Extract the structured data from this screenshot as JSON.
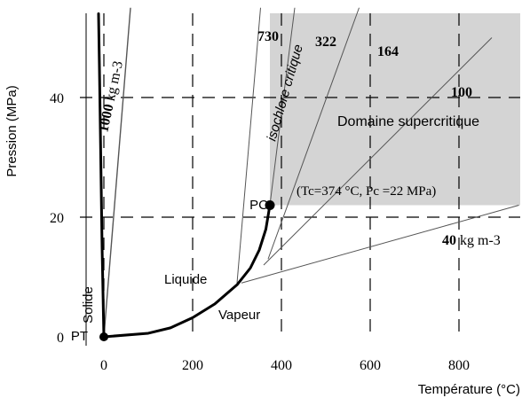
{
  "chart_data": {
    "type": "line",
    "xlabel": "Température (°C)",
    "ylabel": "Pression (MPa)",
    "xlim": [
      -20,
      940
    ],
    "ylim": [
      0,
      54
    ],
    "grid": "dashed",
    "x_ticks": [
      0,
      200,
      400,
      600,
      800
    ],
    "y_ticks": [
      0,
      20,
      40
    ],
    "supercritical_region": {
      "label": "Domaine supercritique",
      "t_min": 374,
      "p_min": 22,
      "color": "#d4d4d4"
    },
    "triple_point": {
      "label": "PT",
      "t": 0.01,
      "p": 0.0006
    },
    "critical_point": {
      "label": "PC",
      "t": 374,
      "p": 22,
      "annotation": "(Tc=374 °C, Pc =22 MPa)"
    },
    "curves": [
      {
        "name": "solid-liquid",
        "style": "thick",
        "points": [
          [
            0.01,
            0
          ],
          [
            -4,
            15
          ],
          [
            -7,
            30
          ],
          [
            -10,
            45
          ],
          [
            -12,
            54
          ]
        ]
      },
      {
        "name": "vaporization",
        "style": "thick",
        "points": [
          [
            0.01,
            0
          ],
          [
            100,
            0.6
          ],
          [
            150,
            1.5
          ],
          [
            200,
            3.2
          ],
          [
            250,
            5.5
          ],
          [
            300,
            8.7
          ],
          [
            330,
            11.5
          ],
          [
            350,
            14.5
          ],
          [
            365,
            18
          ],
          [
            374,
            22
          ]
        ]
      }
    ],
    "isochores": [
      {
        "label": "1000",
        "unit": "kg m-3",
        "points": [
          [
            0.01,
            0
          ],
          [
            60,
            55
          ]
        ]
      },
      {
        "label": "730",
        "points": [
          [
            300,
            9
          ],
          [
            353,
            55
          ]
        ]
      },
      {
        "label": "322",
        "isocritical_label": "isochlore critique",
        "points": [
          [
            374,
            22
          ],
          [
            430,
            55
          ]
        ]
      },
      {
        "label": "164",
        "points": [
          [
            370,
            13
          ],
          [
            575,
            55
          ]
        ]
      },
      {
        "label": "100",
        "points": [
          [
            360,
            12
          ],
          [
            874,
            50
          ]
        ]
      },
      {
        "label": "40",
        "unit": "kg m-3",
        "points": [
          [
            310,
            9
          ],
          [
            935,
            22
          ]
        ]
      }
    ],
    "phase_labels": [
      {
        "text": "Solide",
        "t": -25,
        "p": 4,
        "rotate": -90
      },
      {
        "text": "Liquide",
        "t": 255,
        "p": 9.2,
        "rotate": 0
      },
      {
        "text": "Vapeur",
        "t": 305,
        "p": 4,
        "rotate": 0
      }
    ]
  }
}
